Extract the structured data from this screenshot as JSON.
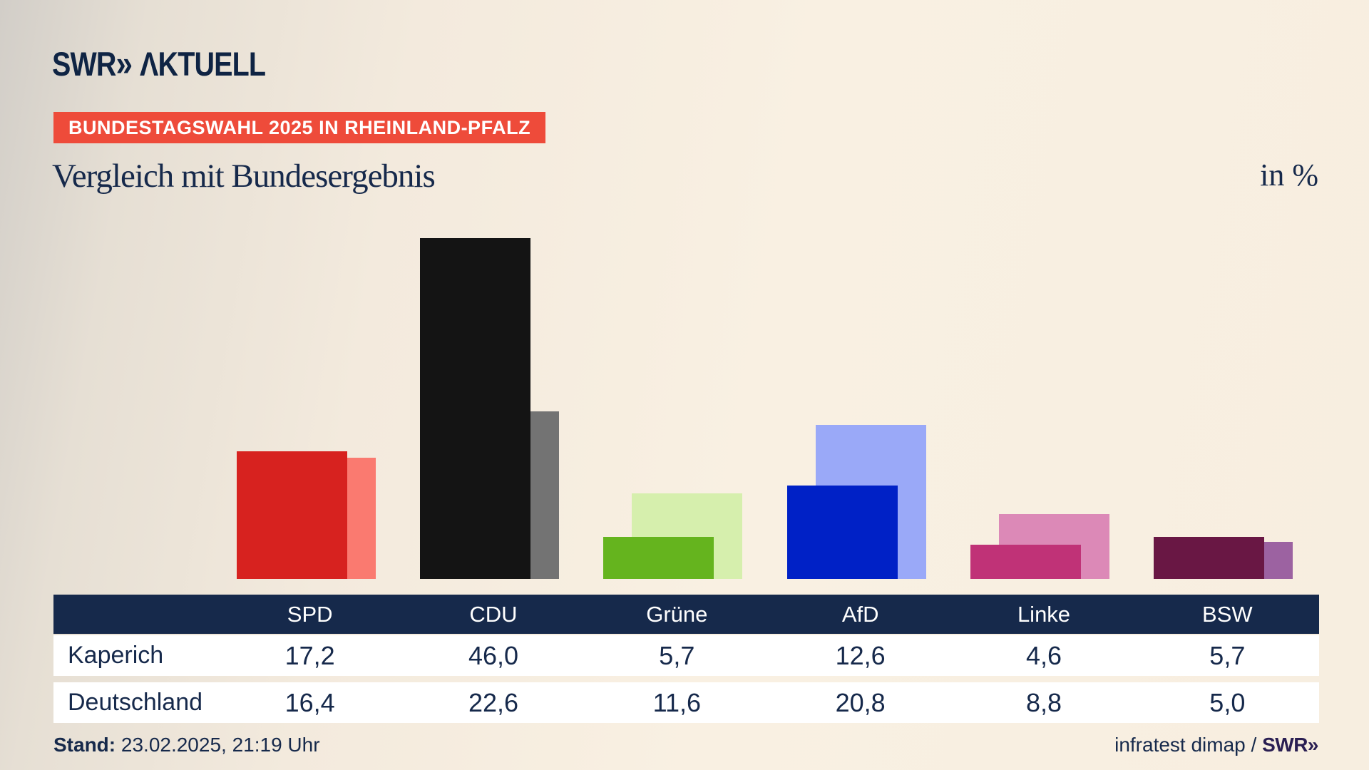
{
  "brand": {
    "logo_main": "SWR",
    "logo_chevron": "»",
    "logo_suffix": "ΛKTUELL"
  },
  "badge": {
    "label": "BUNDESTAGSWAHL 2025 IN RHEINLAND-PFALZ",
    "bg_color": "#ee4b3a",
    "text_color": "#ffffff"
  },
  "title": "Vergleich mit Bundesergebnis",
  "unit_label": "in %",
  "chart_data": {
    "type": "bar",
    "title": "Vergleich mit Bundesergebnis",
    "unit": "%",
    "ylim": [
      0,
      50
    ],
    "grid": false,
    "legend_position": "table-below",
    "categories": [
      "SPD",
      "CDU",
      "Grüne",
      "AfD",
      "Linke",
      "BSW"
    ],
    "series": [
      {
        "name": "Kaperich",
        "values": [
          17.2,
          46.0,
          5.7,
          12.6,
          4.6,
          5.7
        ],
        "colors": [
          "#d7221f",
          "#141414",
          "#65b41e",
          "#0021c6",
          "#c03277",
          "#691744"
        ]
      },
      {
        "name": "Deutschland",
        "values": [
          16.4,
          22.6,
          11.6,
          20.8,
          8.8,
          5.0
        ],
        "colors": [
          "#fa7a70",
          "#737373",
          "#d6efad",
          "#9aa9f8",
          "#dc89b7",
          "#9c62a1"
        ]
      }
    ]
  },
  "table": {
    "headers": [
      "",
      "SPD",
      "CDU",
      "Grüne",
      "AfD",
      "Linke",
      "BSW"
    ],
    "header_bg": "#16294b",
    "rows": [
      {
        "label": "Kaperich",
        "cells": [
          "17,2",
          "46,0",
          "5,7",
          "12,6",
          "4,6",
          "5,7"
        ]
      },
      {
        "label": "Deutschland",
        "cells": [
          "16,4",
          "22,6",
          "11,6",
          "20,8",
          "8,8",
          "5,0"
        ]
      }
    ]
  },
  "footer": {
    "stand_label": "Stand:",
    "stand_value": " 23.02.2025, 21:19 Uhr",
    "source_text": "infratest dimap / ",
    "source_logo": "SWR»"
  }
}
